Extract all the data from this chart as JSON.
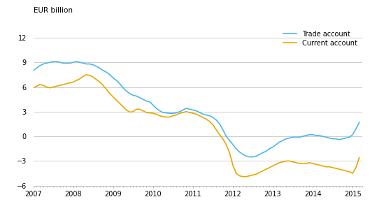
{
  "title": "",
  "ylabel": "EUR billion",
  "xlim_start": 2007.0,
  "xlim_end": 2015.25,
  "ylim": [
    -6,
    13.5
  ],
  "yticks": [
    -6,
    -3,
    0,
    3,
    6,
    9,
    12
  ],
  "trade_color": "#4db8e8",
  "current_color": "#e8a800",
  "trade_label": "Trade account",
  "current_label": "Current account",
  "background_color": "#ffffff",
  "grid_color": "#bbbbbb",
  "trade_account": {
    "dates": [
      2007.0,
      2007.083,
      2007.167,
      2007.25,
      2007.333,
      2007.417,
      2007.5,
      2007.583,
      2007.667,
      2007.75,
      2007.833,
      2007.917,
      2008.0,
      2008.083,
      2008.167,
      2008.25,
      2008.333,
      2008.417,
      2008.5,
      2008.583,
      2008.667,
      2008.75,
      2008.833,
      2008.917,
      2009.0,
      2009.083,
      2009.167,
      2009.25,
      2009.333,
      2009.417,
      2009.5,
      2009.583,
      2009.667,
      2009.75,
      2009.833,
      2009.917,
      2010.0,
      2010.083,
      2010.167,
      2010.25,
      2010.333,
      2010.417,
      2010.5,
      2010.583,
      2010.667,
      2010.75,
      2010.833,
      2010.917,
      2011.0,
      2011.083,
      2011.167,
      2011.25,
      2011.333,
      2011.417,
      2011.5,
      2011.583,
      2011.667,
      2011.75,
      2011.833,
      2011.917,
      2012.0,
      2012.083,
      2012.167,
      2012.25,
      2012.333,
      2012.417,
      2012.5,
      2012.583,
      2012.667,
      2012.75,
      2012.833,
      2012.917,
      2013.0,
      2013.083,
      2013.167,
      2013.25,
      2013.333,
      2013.417,
      2013.5,
      2013.583,
      2013.667,
      2013.75,
      2013.833,
      2013.917,
      2014.0,
      2014.083,
      2014.167,
      2014.25,
      2014.333,
      2014.417,
      2014.5,
      2014.583,
      2014.667,
      2014.75,
      2014.833,
      2014.917,
      2015.0,
      2015.083,
      2015.167
    ],
    "values": [
      8.0,
      8.3,
      8.6,
      8.8,
      8.9,
      9.0,
      9.1,
      9.1,
      9.0,
      8.9,
      8.9,
      8.9,
      9.0,
      9.1,
      9.0,
      8.9,
      8.8,
      8.8,
      8.7,
      8.5,
      8.3,
      8.0,
      7.8,
      7.5,
      7.1,
      6.8,
      6.4,
      5.9,
      5.5,
      5.2,
      5.0,
      4.9,
      4.7,
      4.5,
      4.3,
      4.2,
      3.8,
      3.4,
      3.1,
      2.9,
      2.85,
      2.8,
      2.8,
      2.85,
      3.0,
      3.2,
      3.4,
      3.3,
      3.2,
      3.1,
      2.9,
      2.7,
      2.6,
      2.5,
      2.3,
      2.0,
      1.5,
      0.8,
      0.0,
      -0.5,
      -1.0,
      -1.5,
      -1.9,
      -2.2,
      -2.4,
      -2.5,
      -2.5,
      -2.4,
      -2.2,
      -2.0,
      -1.8,
      -1.5,
      -1.3,
      -1.0,
      -0.7,
      -0.5,
      -0.3,
      -0.2,
      -0.1,
      -0.1,
      -0.1,
      0.0,
      0.1,
      0.2,
      0.2,
      0.1,
      0.1,
      0.0,
      -0.1,
      -0.2,
      -0.3,
      -0.3,
      -0.4,
      -0.3,
      -0.2,
      -0.1,
      0.2,
      0.9,
      1.7
    ]
  },
  "current_account": {
    "dates": [
      2007.0,
      2007.083,
      2007.167,
      2007.25,
      2007.333,
      2007.417,
      2007.5,
      2007.583,
      2007.667,
      2007.75,
      2007.833,
      2007.917,
      2008.0,
      2008.083,
      2008.167,
      2008.25,
      2008.333,
      2008.417,
      2008.5,
      2008.583,
      2008.667,
      2008.75,
      2008.833,
      2008.917,
      2009.0,
      2009.083,
      2009.167,
      2009.25,
      2009.333,
      2009.417,
      2009.5,
      2009.583,
      2009.667,
      2009.75,
      2009.833,
      2009.917,
      2010.0,
      2010.083,
      2010.167,
      2010.25,
      2010.333,
      2010.417,
      2010.5,
      2010.583,
      2010.667,
      2010.75,
      2010.833,
      2010.917,
      2011.0,
      2011.083,
      2011.167,
      2011.25,
      2011.333,
      2011.417,
      2011.5,
      2011.583,
      2011.667,
      2011.75,
      2011.833,
      2011.917,
      2012.0,
      2012.083,
      2012.167,
      2012.25,
      2012.333,
      2012.417,
      2012.5,
      2012.583,
      2012.667,
      2012.75,
      2012.833,
      2012.917,
      2013.0,
      2013.083,
      2013.167,
      2013.25,
      2013.333,
      2013.417,
      2013.5,
      2013.583,
      2013.667,
      2013.75,
      2013.833,
      2013.917,
      2014.0,
      2014.083,
      2014.167,
      2014.25,
      2014.333,
      2014.417,
      2014.5,
      2014.583,
      2014.667,
      2014.75,
      2014.833,
      2014.917,
      2015.0,
      2015.083,
      2015.167
    ],
    "values": [
      5.9,
      6.1,
      6.3,
      6.2,
      6.0,
      5.9,
      6.0,
      6.1,
      6.2,
      6.3,
      6.4,
      6.5,
      6.6,
      6.8,
      7.0,
      7.3,
      7.5,
      7.4,
      7.2,
      6.9,
      6.6,
      6.2,
      5.7,
      5.2,
      4.8,
      4.4,
      4.0,
      3.6,
      3.2,
      2.95,
      3.0,
      3.3,
      3.3,
      3.1,
      2.9,
      2.85,
      2.8,
      2.7,
      2.5,
      2.4,
      2.35,
      2.35,
      2.5,
      2.6,
      2.8,
      2.9,
      3.0,
      2.9,
      2.8,
      2.7,
      2.5,
      2.3,
      2.1,
      1.8,
      1.4,
      0.8,
      0.2,
      -0.3,
      -1.0,
      -2.0,
      -3.5,
      -4.5,
      -4.8,
      -4.9,
      -4.9,
      -4.8,
      -4.7,
      -4.6,
      -4.4,
      -4.2,
      -4.0,
      -3.8,
      -3.6,
      -3.4,
      -3.2,
      -3.1,
      -3.0,
      -3.0,
      -3.1,
      -3.2,
      -3.3,
      -3.3,
      -3.3,
      -3.2,
      -3.3,
      -3.4,
      -3.5,
      -3.6,
      -3.7,
      -3.7,
      -3.8,
      -3.9,
      -4.0,
      -4.1,
      -4.2,
      -4.3,
      -4.5,
      -3.8,
      -2.6
    ]
  },
  "xticks": [
    2007,
    2008,
    2009,
    2010,
    2011,
    2012,
    2013,
    2014,
    2015
  ],
  "xtick_labels": [
    "2007",
    "2008",
    "2009",
    "2010",
    "2011",
    "2012",
    "2013",
    "2014",
    "2015"
  ]
}
